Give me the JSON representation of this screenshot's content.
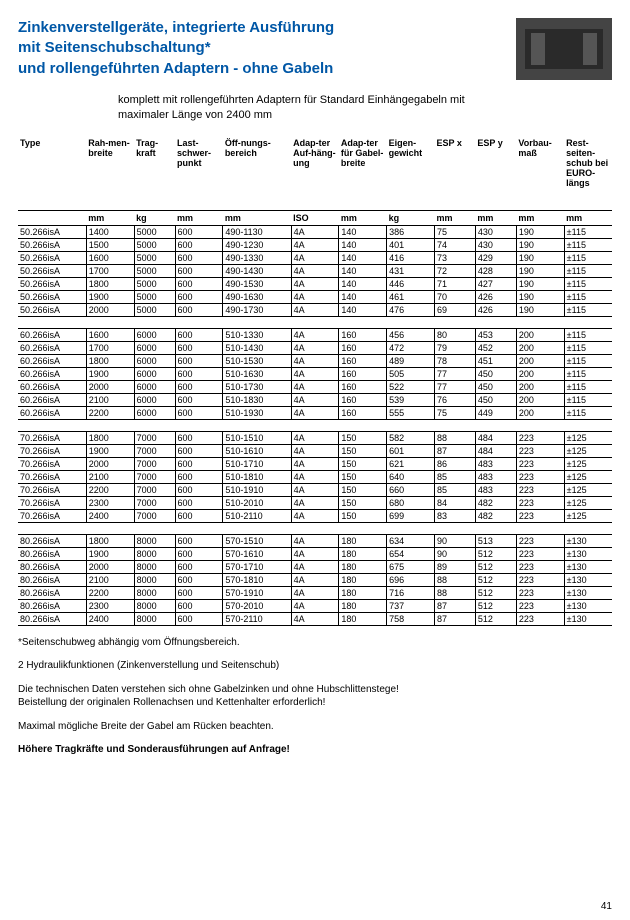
{
  "header": {
    "line1": "Zinkenverstellgeräte, integrierte Ausführung",
    "line2": "mit Seitenschubschaltung*",
    "line3": "und rollengeführten Adaptern - ohne Gabeln",
    "color": "#0057a6"
  },
  "subtitle": {
    "line1": "komplett mit rollengeführten Adaptern für Standard Einhängegabeln mit",
    "line2": "maximaler Länge von 2400 mm"
  },
  "columns": [
    {
      "h": "Type",
      "u": ""
    },
    {
      "h": "Rah-men-breite",
      "u": "mm"
    },
    {
      "h": "Trag-kraft",
      "u": "kg"
    },
    {
      "h": "Last-schwer-punkt",
      "u": "mm"
    },
    {
      "h": "Öff-nungs-bereich",
      "u": "mm"
    },
    {
      "h": "Adap-ter Auf-häng-ung",
      "u": "ISO"
    },
    {
      "h": "Adap-ter für Gabel-breite",
      "u": "mm"
    },
    {
      "h": "Eigen-gewicht",
      "u": "kg"
    },
    {
      "h": "ESP x",
      "u": "mm"
    },
    {
      "h": "ESP y",
      "u": "mm"
    },
    {
      "h": "Vorbau-maß",
      "u": "mm"
    },
    {
      "h": "Rest-seiten-schub bei EURO-längs",
      "u": "mm"
    }
  ],
  "groups": [
    [
      [
        "50.266isA",
        "1400",
        "5000",
        "600",
        "490-1130",
        "4A",
        "140",
        "386",
        "75",
        "430",
        "190",
        "±115"
      ],
      [
        "50.266isA",
        "1500",
        "5000",
        "600",
        "490-1230",
        "4A",
        "140",
        "401",
        "74",
        "430",
        "190",
        "±115"
      ],
      [
        "50.266isA",
        "1600",
        "5000",
        "600",
        "490-1330",
        "4A",
        "140",
        "416",
        "73",
        "429",
        "190",
        "±115"
      ],
      [
        "50.266isA",
        "1700",
        "5000",
        "600",
        "490-1430",
        "4A",
        "140",
        "431",
        "72",
        "428",
        "190",
        "±115"
      ],
      [
        "50.266isA",
        "1800",
        "5000",
        "600",
        "490-1530",
        "4A",
        "140",
        "446",
        "71",
        "427",
        "190",
        "±115"
      ],
      [
        "50.266isA",
        "1900",
        "5000",
        "600",
        "490-1630",
        "4A",
        "140",
        "461",
        "70",
        "426",
        "190",
        "±115"
      ],
      [
        "50.266isA",
        "2000",
        "5000",
        "600",
        "490-1730",
        "4A",
        "140",
        "476",
        "69",
        "426",
        "190",
        "±115"
      ]
    ],
    [
      [
        "60.266isA",
        "1600",
        "6000",
        "600",
        "510-1330",
        "4A",
        "160",
        "456",
        "80",
        "453",
        "200",
        "±115"
      ],
      [
        "60.266isA",
        "1700",
        "6000",
        "600",
        "510-1430",
        "4A",
        "160",
        "472",
        "79",
        "452",
        "200",
        "±115"
      ],
      [
        "60.266isA",
        "1800",
        "6000",
        "600",
        "510-1530",
        "4A",
        "160",
        "489",
        "78",
        "451",
        "200",
        "±115"
      ],
      [
        "60.266isA",
        "1900",
        "6000",
        "600",
        "510-1630",
        "4A",
        "160",
        "505",
        "77",
        "450",
        "200",
        "±115"
      ],
      [
        "60.266isA",
        "2000",
        "6000",
        "600",
        "510-1730",
        "4A",
        "160",
        "522",
        "77",
        "450",
        "200",
        "±115"
      ],
      [
        "60.266isA",
        "2100",
        "6000",
        "600",
        "510-1830",
        "4A",
        "160",
        "539",
        "76",
        "450",
        "200",
        "±115"
      ],
      [
        "60.266isA",
        "2200",
        "6000",
        "600",
        "510-1930",
        "4A",
        "160",
        "555",
        "75",
        "449",
        "200",
        "±115"
      ]
    ],
    [
      [
        "70.266isA",
        "1800",
        "7000",
        "600",
        "510-1510",
        "4A",
        "150",
        "582",
        "88",
        "484",
        "223",
        "±125"
      ],
      [
        "70.266isA",
        "1900",
        "7000",
        "600",
        "510-1610",
        "4A",
        "150",
        "601",
        "87",
        "484",
        "223",
        "±125"
      ],
      [
        "70.266isA",
        "2000",
        "7000",
        "600",
        "510-1710",
        "4A",
        "150",
        "621",
        "86",
        "483",
        "223",
        "±125"
      ],
      [
        "70.266isA",
        "2100",
        "7000",
        "600",
        "510-1810",
        "4A",
        "150",
        "640",
        "85",
        "483",
        "223",
        "±125"
      ],
      [
        "70.266isA",
        "2200",
        "7000",
        "600",
        "510-1910",
        "4A",
        "150",
        "660",
        "85",
        "483",
        "223",
        "±125"
      ],
      [
        "70.266isA",
        "2300",
        "7000",
        "600",
        "510-2010",
        "4A",
        "150",
        "680",
        "84",
        "482",
        "223",
        "±125"
      ],
      [
        "70.266isA",
        "2400",
        "7000",
        "600",
        "510-2110",
        "4A",
        "150",
        "699",
        "83",
        "482",
        "223",
        "±125"
      ]
    ],
    [
      [
        "80.266isA",
        "1800",
        "8000",
        "600",
        "570-1510",
        "4A",
        "180",
        "634",
        "90",
        "513",
        "223",
        "±130"
      ],
      [
        "80.266isA",
        "1900",
        "8000",
        "600",
        "570-1610",
        "4A",
        "180",
        "654",
        "90",
        "512",
        "223",
        "±130"
      ],
      [
        "80.266isA",
        "2000",
        "8000",
        "600",
        "570-1710",
        "4A",
        "180",
        "675",
        "89",
        "512",
        "223",
        "±130"
      ],
      [
        "80.266isA",
        "2100",
        "8000",
        "600",
        "570-1810",
        "4A",
        "180",
        "696",
        "88",
        "512",
        "223",
        "±130"
      ],
      [
        "80.266isA",
        "2200",
        "8000",
        "600",
        "570-1910",
        "4A",
        "180",
        "716",
        "88",
        "512",
        "223",
        "±130"
      ],
      [
        "80.266isA",
        "2300",
        "8000",
        "600",
        "570-2010",
        "4A",
        "180",
        "737",
        "87",
        "512",
        "223",
        "±130"
      ],
      [
        "80.266isA",
        "2400",
        "8000",
        "600",
        "570-2110",
        "4A",
        "180",
        "758",
        "87",
        "512",
        "223",
        "±130"
      ]
    ]
  ],
  "notes": {
    "n1": "*Seitenschubweg abhängig vom Öffnungsbereich.",
    "n2": "2 Hydraulikfunktionen (Zinkenverstellung und Seitenschub)",
    "n3a": "Die technischen Daten verstehen sich ohne Gabelzinken und ohne Hubschlittenstege!",
    "n3b": "Beistellung der originalen Rollenachsen und Kettenhalter erforderlich!",
    "n4": "Maximal mögliche Breite der Gabel am Rücken beachten.",
    "n5": "Höhere Tragkräfte und Sonderausführungen auf Anfrage!"
  },
  "pageNumber": "41",
  "style": {
    "rowBorderColor": "#000000"
  }
}
